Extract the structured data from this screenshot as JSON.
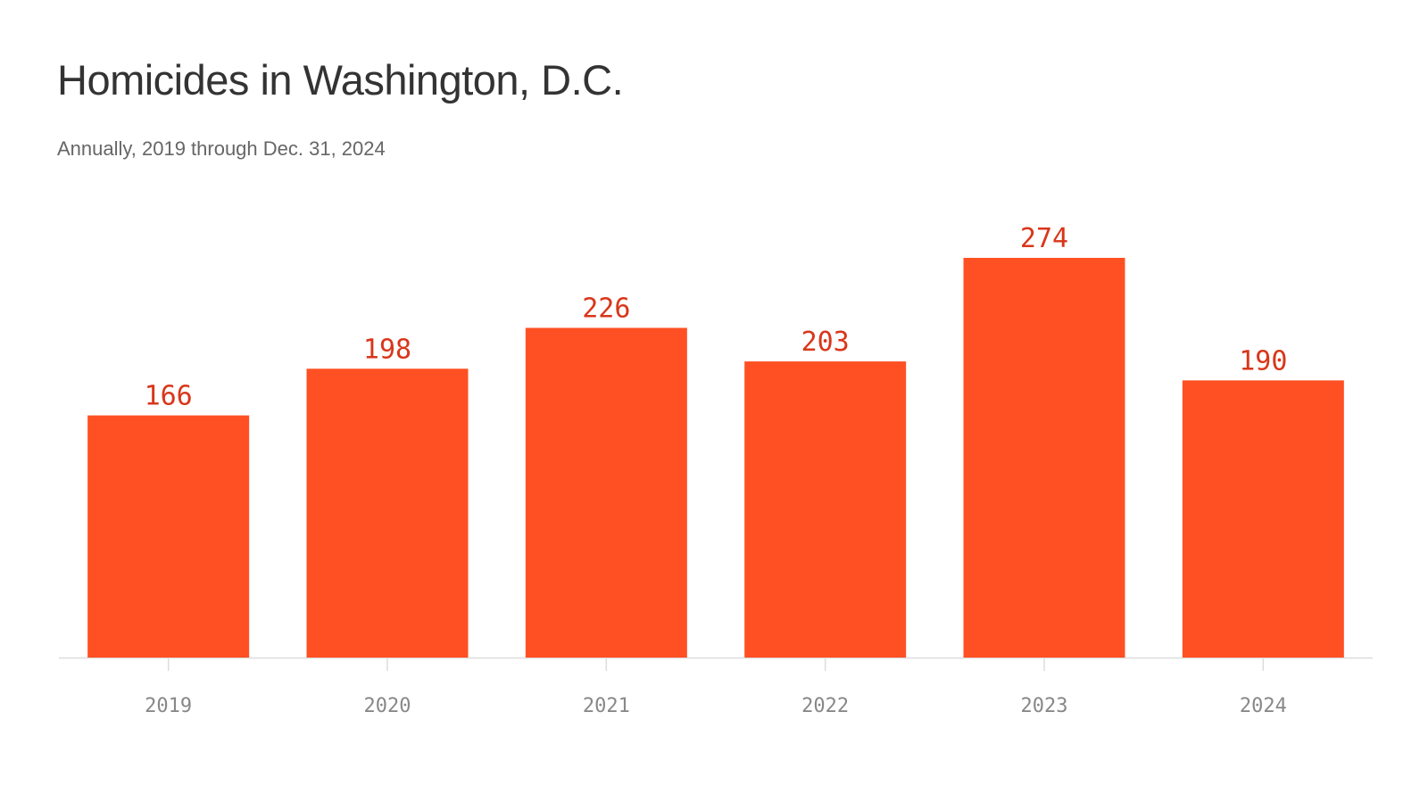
{
  "title": "Homicides in Washington, D.C.",
  "subtitle": "Annually, 2019 through Dec. 31, 2024",
  "colors": {
    "bar": "#ff5023",
    "value_label": "#d9361a",
    "axis": "#dddddd",
    "tick_label": "#888888"
  },
  "chart_data": {
    "type": "bar",
    "categories": [
      "2019",
      "2020",
      "2021",
      "2022",
      "2023",
      "2024"
    ],
    "values": [
      166,
      198,
      226,
      203,
      274,
      190
    ],
    "data_labels": [
      "166",
      "198",
      "226",
      "203",
      "274",
      "190"
    ],
    "title": "Homicides in Washington, D.C.",
    "subtitle": "Annually, 2019 through Dec. 31, 2024",
    "xlabel": "",
    "ylabel": "",
    "ylim": [
      0,
      274
    ],
    "grid": false,
    "legend": "none"
  }
}
